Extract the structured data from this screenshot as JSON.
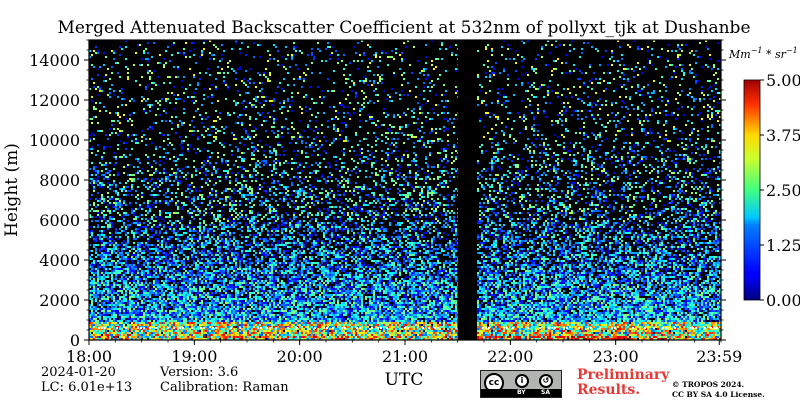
{
  "chart_data": {
    "type": "heatmap",
    "title": "Merged Attenuated Backscatter Coefficient at 532nm of pollyxt_tjk at Dushanbe",
    "xlabel": "UTC",
    "ylabel": "Height (m)",
    "x_ticks": [
      "18:00",
      "19:00",
      "20:00",
      "21:00",
      "22:00",
      "23:00",
      "23:59"
    ],
    "x_range_hours": [
      18.0,
      24.0
    ],
    "y_ticks": [
      0,
      2000,
      4000,
      6000,
      8000,
      10000,
      12000,
      14000
    ],
    "ylim": [
      0,
      15000
    ],
    "colorbar": {
      "unit": "Mm^-1 * sr^-1",
      "range": [
        0.0,
        5.0
      ],
      "ticks": [
        "0.00",
        "1.25",
        "2.50",
        "3.75",
        "5.00"
      ],
      "colormap": "jet"
    },
    "no_data_gaps_utc": [
      [
        "21:30",
        "21:40"
      ]
    ],
    "layers": [
      {
        "name": "aerosol layer",
        "height_range_m": [
          0,
          1000
        ],
        "intensity": "high"
      },
      {
        "name": "noise",
        "height_range_m": [
          1000,
          15000
        ],
        "intensity": "decreasing with height"
      }
    ],
    "grid": false
  },
  "info": {
    "date": "2024-01-20",
    "version": "Version: 3.6",
    "lc": "LC: 6.01e+13",
    "calibration": "Calibration: Raman"
  },
  "license_badge": {
    "labels": [
      "BY",
      "SA"
    ],
    "cc": "cc"
  },
  "preliminary": [
    "Preliminary",
    "Results."
  ],
  "copyright": [
    "© TROPOS 2024.",
    "CC BY SA 4.0 License."
  ],
  "colors": {
    "plot_bg": "#000000",
    "accent_preliminary": "#e53935"
  }
}
